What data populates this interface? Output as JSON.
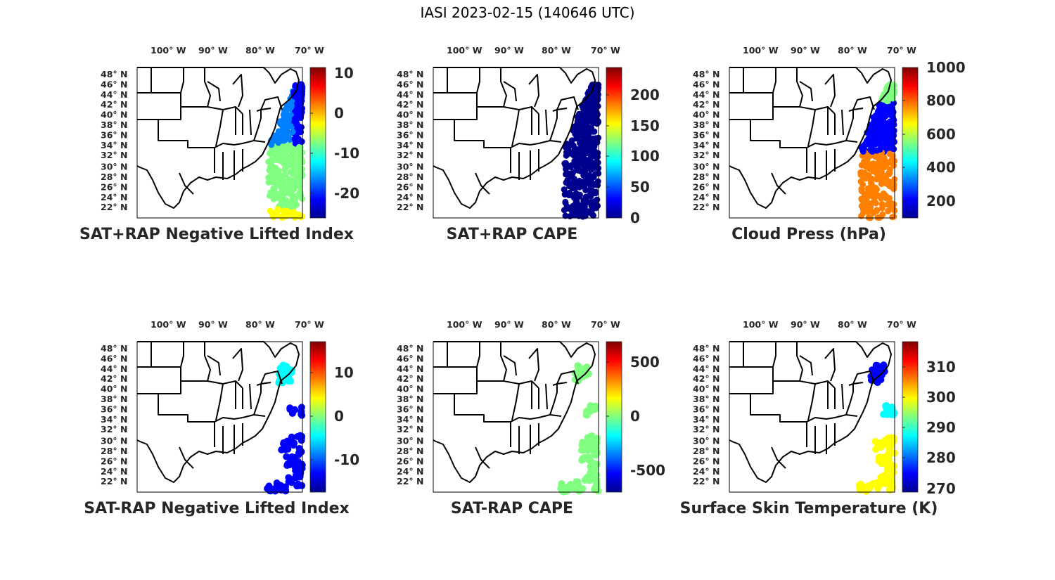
{
  "title": "IASI 2023-02-15 (140646 UTC)",
  "lon_labels": [
    "100",
    "90",
    "80",
    "70"
  ],
  "lon_suffix": "W",
  "lat_labels": [
    "48",
    "46",
    "44",
    "42",
    "40",
    "38",
    "36",
    "34",
    "32",
    "30",
    "28",
    "26",
    "24",
    "22"
  ],
  "lat_suffix": "N",
  "colormap": "jet",
  "panels": [
    {
      "title": "SAT+RAP Negative Lifted Index",
      "cbar_ticks": [
        "10",
        "0",
        "-10",
        "-20"
      ]
    },
    {
      "title": "SAT+RAP CAPE",
      "cbar_ticks": [
        "200",
        "150",
        "100",
        "50",
        "0"
      ]
    },
    {
      "title": "Cloud Press (hPa)",
      "cbar_ticks": [
        "1000",
        "800",
        "600",
        "400",
        "200"
      ]
    },
    {
      "title": "SAT-RAP Negative Lifted Index",
      "cbar_ticks": [
        "10",
        "0",
        "-10"
      ]
    },
    {
      "title": "SAT-RAP CAPE",
      "cbar_ticks": [
        "500",
        "0",
        "-500"
      ]
    },
    {
      "title": "Surface Skin Temperature (K)",
      "cbar_ticks": [
        "310",
        "300",
        "290",
        "280",
        "270"
      ]
    }
  ]
}
